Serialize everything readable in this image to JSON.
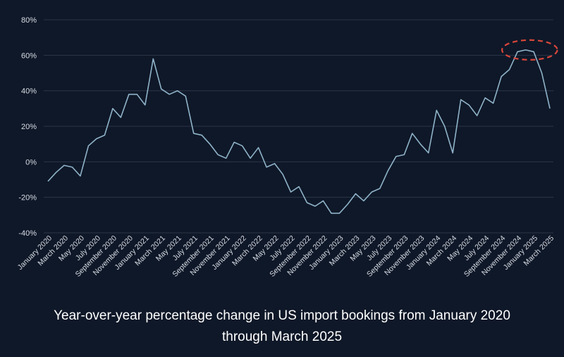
{
  "chart_data": {
    "type": "line",
    "title": "",
    "caption_line1": "Year-over-year percentage change in US import bookings from January 2020",
    "caption_line2": "through March 2025",
    "xlabel": "",
    "ylabel": "",
    "ylim": [
      -40,
      80
    ],
    "y_ticks": [
      -40,
      -20,
      0,
      20,
      40,
      60,
      80
    ],
    "y_tick_labels": [
      "-40%",
      "-20%",
      "0%",
      "20%",
      "40%",
      "60%",
      "80%"
    ],
    "grid": true,
    "x_tick_labels": [
      "January 2020",
      "March 2020",
      "May 2020",
      "July 2020",
      "September 2020",
      "November 2020",
      "January 2021",
      "March 2021",
      "May 2021",
      "July 2021",
      "September 2021",
      "November 2021",
      "January 2022",
      "March 2022",
      "May 2022",
      "July 2022",
      "September 2022",
      "November 2022",
      "January 2023",
      "March 2023",
      "May 2023",
      "July 2023",
      "September 2023",
      "November 2023",
      "January 2024",
      "March 2024",
      "May 2024",
      "July 2024",
      "September 2024",
      "November 2024",
      "January 2025",
      "March 2025"
    ],
    "series": [
      {
        "color": "#8fb3c9",
        "values": [
          -11,
          -6,
          -2,
          -3,
          -8,
          9,
          13,
          15,
          30,
          25,
          38,
          38,
          32,
          58,
          41,
          38,
          40,
          37,
          16,
          15,
          10,
          4,
          2,
          11,
          9,
          2,
          8,
          -3,
          -1,
          -7,
          -17,
          -14,
          -23,
          -25,
          -22,
          -29,
          -29,
          -24,
          -18,
          -22,
          -17,
          -15,
          -5,
          3,
          4,
          16,
          10,
          5,
          29,
          20,
          5,
          35,
          32,
          26,
          36,
          33,
          48,
          52,
          62,
          63,
          62,
          50,
          30
        ]
      }
    ],
    "highlight": {
      "color": "#d9463b",
      "from_index": 58,
      "to_index": 61
    }
  }
}
